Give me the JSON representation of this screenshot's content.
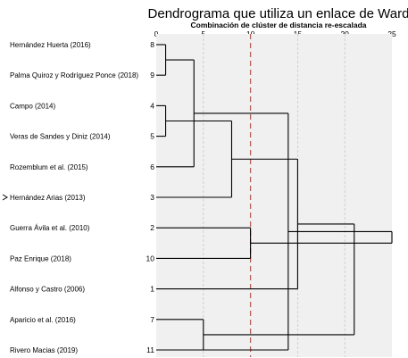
{
  "chart_data": {
    "type": "dendrogram",
    "title": "Dendrograma que utiliza un enlace de Ward",
    "subtitle": "Combinación de clúster de distancia re-escalada",
    "x_ticks": [
      0,
      5,
      10,
      15,
      20,
      25
    ],
    "xlim": [
      0,
      25
    ],
    "cut_line": 10,
    "grid": true,
    "colors": {
      "panel": "#f0f0f0",
      "grid": "#c8c8c8",
      "tree": "#000000",
      "cut_line": "#d9534f"
    },
    "leaves": [
      {
        "label": "Hernández Huerta (2016)",
        "case": "8"
      },
      {
        "label": "Palma Quiroz y Rodríguez Ponce (2018)",
        "case": "9"
      },
      {
        "label": "Campo (2014)",
        "case": "4"
      },
      {
        "label": "Veras de Sandes y Diniz (2014)",
        "case": "5"
      },
      {
        "label": "Rozemblum et al. (2015)",
        "case": "6"
      },
      {
        "label": "Hernández Arias (2013)",
        "case": "3",
        "marker": "arrow-pointer-icon"
      },
      {
        "label": "Guerra Ávila et al. (2010)",
        "case": "2"
      },
      {
        "label": "Paz Enrique (2018)",
        "case": "10"
      },
      {
        "label": "Alfonso y Castro (2006)",
        "case": "1"
      },
      {
        "label": "Aparicio et al. (2016)",
        "case": "7"
      },
      {
        "label": "Rivero Macias (2019)",
        "case": "11"
      }
    ],
    "merges": [
      {
        "a": 0,
        "b": 1,
        "height": 1
      },
      {
        "a": 2,
        "b": 3,
        "height": 1
      },
      {
        "a": 11,
        "b": 4,
        "height": 4
      },
      {
        "a": 12,
        "b": 5,
        "height": 8
      },
      {
        "a": 6,
        "b": 7,
        "height": 10
      },
      {
        "a": 9,
        "b": 10,
        "height": 5
      },
      {
        "a": 14,
        "b": 8,
        "height": 15
      },
      {
        "a": 10,
        "b": 13,
        "height": 14
      },
      {
        "a": 17,
        "b": 16,
        "height": 21
      },
      {
        "a": 18,
        "b": 15,
        "height": 25
      }
    ]
  }
}
